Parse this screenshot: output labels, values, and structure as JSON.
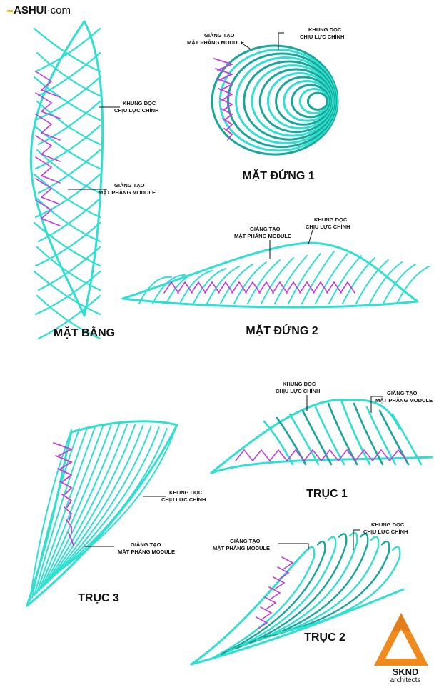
{
  "logo": {
    "text": "ASHUI",
    "suffix": "com"
  },
  "brand": {
    "name": "SKND",
    "sub": "architects",
    "color": "#f08a1c"
  },
  "colors": {
    "structure": "#2fe0d0",
    "structure_dark": "#17a79a",
    "bracing": "#c43cdc"
  },
  "views": {
    "mat_bang": "MẶT BẰNG",
    "mat_dung_1": "MẶT ĐỨNG 1",
    "mat_dung_2": "MẶT ĐỨNG 2",
    "truc_1": "TRỤC 1",
    "truc_2": "TRỤC 2",
    "truc_3": "TRỤC 3"
  },
  "annotations": {
    "khung_line1": "KHUNG DỌC",
    "khung_line2": "CHỊU LỰC CHÍNH",
    "giang_line1": "GIẰNG TẠO",
    "giang_line2": "MẶT PHẲNG MODULE"
  }
}
